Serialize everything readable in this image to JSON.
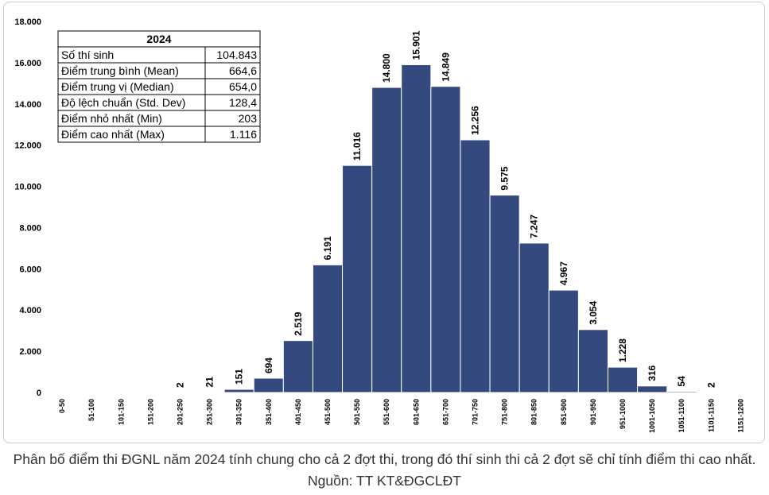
{
  "chart_data": {
    "type": "bar",
    "categories": [
      "0-50",
      "51-100",
      "101-150",
      "151-200",
      "201-250",
      "251-300",
      "301-350",
      "351-400",
      "401-450",
      "451-500",
      "501-550",
      "551-600",
      "601-650",
      "651-700",
      "701-750",
      "751-800",
      "801-850",
      "851-900",
      "901-950",
      "951-1000",
      "1001-1050",
      "1051-1100",
      "1101-1150",
      "1151-1200"
    ],
    "values": [
      0,
      0,
      0,
      0,
      2,
      21,
      151,
      694,
      2519,
      6191,
      11016,
      14800,
      15901,
      14849,
      12256,
      9575,
      7247,
      4967,
      3054,
      1228,
      316,
      54,
      2,
      0
    ],
    "value_labels": [
      null,
      null,
      null,
      null,
      "2",
      "21",
      "151",
      "694",
      "2.519",
      "6.191",
      "11.016",
      "14.800",
      "15.901",
      "14.849",
      "12.256",
      "9.575",
      "7.247",
      "4.967",
      "3.054",
      "1.228",
      "316",
      "54",
      "2",
      null
    ],
    "color": "#34497e",
    "ylim": [
      0,
      18000
    ],
    "yticks": [
      0,
      {
        "value": 2000,
        "label": "2.000"
      },
      {
        "value": 4000,
        "label": "4.000"
      },
      {
        "value": 6000,
        "label": "6.000"
      },
      {
        "value": 8000,
        "label": "8.000"
      },
      {
        "value": 10000,
        "label": "10.000"
      },
      {
        "value": 12000,
        "label": "12.000"
      },
      {
        "value": 14000,
        "label": "14.000"
      },
      {
        "value": 16000,
        "label": "16.000"
      },
      {
        "value": 18000,
        "label": "18.000"
      }
    ],
    "grid": false,
    "stats_table": {
      "title": "2024",
      "rows": [
        [
          "Số thí sinh",
          "104.843"
        ],
        [
          "Điểm trung bình (Mean)",
          "664,6"
        ],
        [
          "Điểm trung vị (Median)",
          "654,0"
        ],
        [
          "Độ lệch chuẩn (Std. Dev)",
          "128,4"
        ],
        [
          "Điểm nhỏ nhất (Min)",
          "203"
        ],
        [
          "Điểm cao nhất (Max)",
          "1.116"
        ]
      ]
    }
  },
  "caption": "Phân bố điểm thi ĐGNL năm 2024 tính chung cho cả 2 đợt thi, trong đó thí sinh thi cả 2 đợt sẽ chỉ tính điểm thi cao nhất. Nguồn: TT KT&ĐGCLĐT"
}
